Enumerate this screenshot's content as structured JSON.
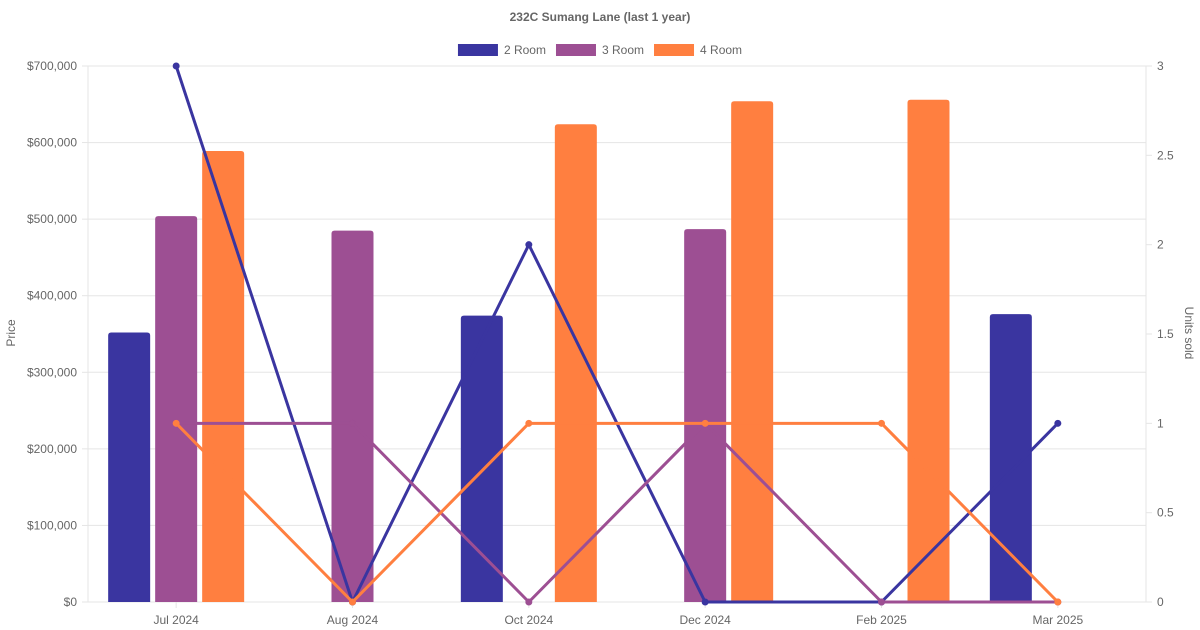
{
  "chart_data": {
    "type": "bar",
    "title": "232C Sumang Lane (last 1 year)",
    "categories": [
      "Jul 2024",
      "Aug 2024",
      "Oct 2024",
      "Dec 2024",
      "Feb 2025",
      "Mar 2025"
    ],
    "y_left": {
      "label": "Price",
      "ylim": [
        0,
        700000
      ],
      "ticks": [
        0,
        100000,
        200000,
        300000,
        400000,
        500000,
        600000,
        700000
      ],
      "tick_labels": [
        "$0",
        "$100,000",
        "$200,000",
        "$300,000",
        "$400,000",
        "$500,000",
        "$600,000",
        "$700,000"
      ]
    },
    "y_right": {
      "label": "Units sold",
      "ylim": [
        0,
        3
      ],
      "ticks": [
        0,
        0.5,
        1,
        1.5,
        2,
        2.5,
        3
      ],
      "tick_labels": [
        "0",
        "0.5",
        "1",
        "1.5",
        "2",
        "2.5",
        "3"
      ]
    },
    "legend": {
      "position": "top-center",
      "items": [
        {
          "label": "2 Room",
          "color": "#3a35a0"
        },
        {
          "label": "3 Room",
          "color": "#9d4f93"
        },
        {
          "label": "4 Room",
          "color": "#ff7f40"
        }
      ]
    },
    "series": [
      {
        "name": "2 Room",
        "color": "#3a35a0",
        "price": [
          352000,
          null,
          374000,
          null,
          null,
          376000
        ],
        "units": [
          3,
          0,
          2,
          0,
          0,
          1
        ]
      },
      {
        "name": "3 Room",
        "color": "#9d4f93",
        "price": [
          504000,
          485000,
          null,
          487000,
          null,
          null
        ],
        "units": [
          1,
          1,
          0,
          1,
          0,
          0
        ]
      },
      {
        "name": "4 Room",
        "color": "#ff7f40",
        "price": [
          589000,
          null,
          624000,
          654000,
          656000,
          null
        ],
        "units": [
          1,
          0,
          1,
          1,
          1,
          0
        ]
      }
    ]
  }
}
